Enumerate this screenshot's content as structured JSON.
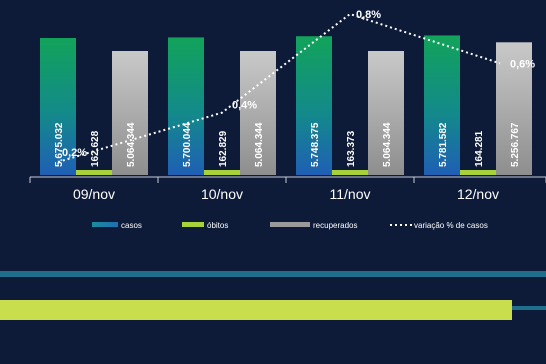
{
  "chart_data": {
    "type": "bar",
    "title": "",
    "xlabel": "",
    "ylabel": "",
    "categories": [
      "09/nov",
      "10/nov",
      "11/nov",
      "12/nov"
    ],
    "series": [
      {
        "name": "casos",
        "values": [
          5675032,
          5700044,
          5748375,
          5781582
        ],
        "labels": [
          "5.675.032",
          "5.700.044",
          "5.748.375",
          "5.781.582"
        ],
        "color": "#1a9e5a"
      },
      {
        "name": "óbitos",
        "values": [
          162628,
          162829,
          163373,
          164281
        ],
        "labels": [
          "162.628",
          "162.829",
          "163.373",
          "164.281"
        ],
        "color": "#a9d13a"
      },
      {
        "name": "recuperados",
        "values": [
          5064344,
          5064344,
          5064344,
          5256767
        ],
        "labels": [
          "5.064.344",
          "5.064.344",
          "5.064.344",
          "5.256.767"
        ],
        "color": "#a8a8a8"
      }
    ],
    "line_series": {
      "name": "variação % de casos",
      "values": [
        0.2,
        0.4,
        0.8,
        0.6
      ],
      "labels": [
        "0,2%",
        "0,4%",
        "0,8%",
        "0,6%"
      ],
      "color": "#ffffff"
    },
    "legend_position": "bottom",
    "grid": false
  }
}
